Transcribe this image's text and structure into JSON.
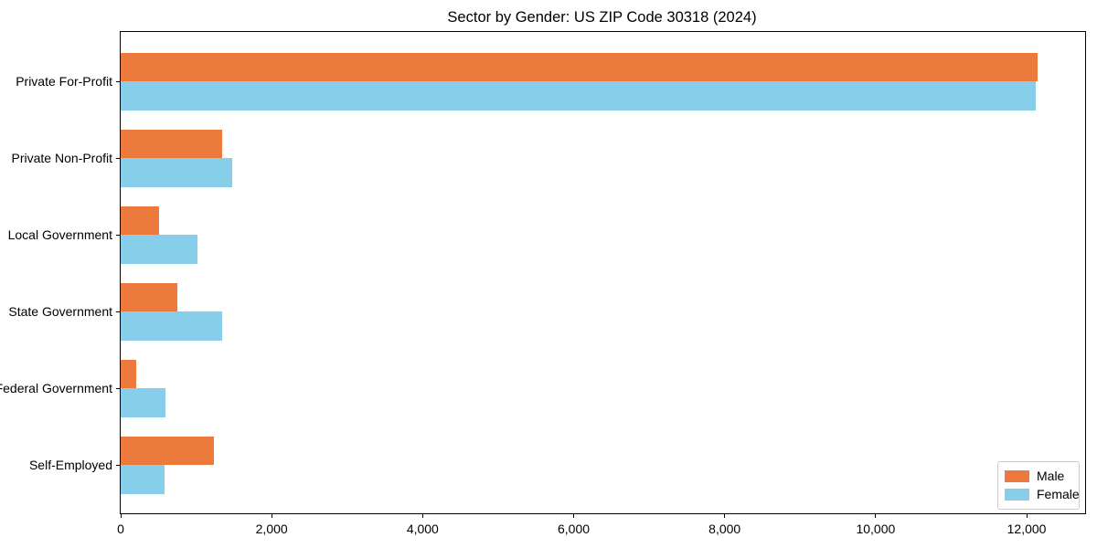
{
  "chart_data": {
    "type": "bar",
    "orientation": "horizontal",
    "title": "Sector by Gender: US ZIP Code 30318 (2024)",
    "categories": [
      "Private For-Profit",
      "Private Non-Profit",
      "Local Government",
      "State Government",
      "Federal Government",
      "Self-Employed"
    ],
    "series": [
      {
        "name": "Male",
        "color": "#EC7A3C",
        "values": [
          12150,
          1350,
          510,
          750,
          210,
          1230
        ]
      },
      {
        "name": "Female",
        "color": "#87CEEB",
        "values": [
          12120,
          1480,
          1020,
          1350,
          590,
          580
        ]
      }
    ],
    "xlabel": "",
    "ylabel": "",
    "xlim": [
      0,
      12774
    ],
    "xticks": [
      0,
      2000,
      4000,
      6000,
      8000,
      10000,
      12000
    ],
    "xtick_labels": [
      "0",
      "2,000",
      "4,000",
      "6,000",
      "8,000",
      "10,000",
      "12,000"
    ],
    "grid": false,
    "legend": {
      "position": "lower right"
    },
    "colors": {
      "male": "#EC7A3C",
      "female": "#87CEEB",
      "frame": "#000000",
      "legend_border": "#cccccc"
    }
  }
}
